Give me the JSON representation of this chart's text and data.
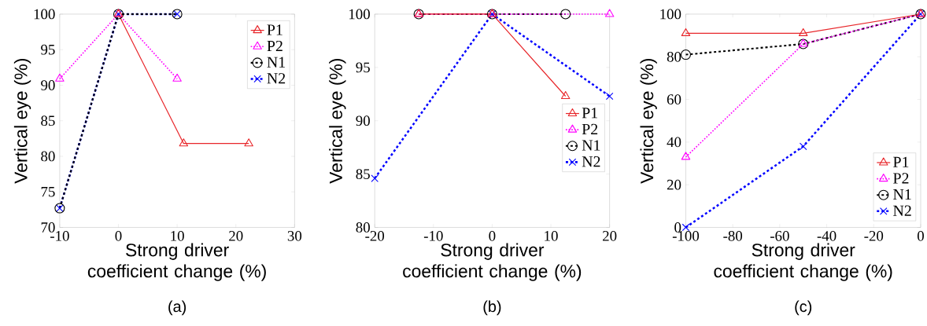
{
  "chart_data": [
    {
      "type": "line",
      "xlabel": "Strong driver coefficient change (%)",
      "ylabel": "Vertical eye (%)",
      "annotations": [
        "(a)"
      ],
      "xlim": [
        -10,
        30
      ],
      "ylim": [
        70,
        100
      ],
      "xticks": [
        -10,
        0,
        10,
        20,
        30
      ],
      "yticks": [
        70,
        75,
        80,
        85,
        90,
        95,
        100
      ],
      "legend": "top right",
      "series": [
        {
          "name": "P1",
          "color": "#e8262a",
          "marker": "triangle",
          "line_style": "solid",
          "x": [
            0,
            11.1,
            22.2
          ],
          "values": [
            100,
            81.8,
            81.8
          ]
        },
        {
          "name": "P2",
          "color": "#ff00ff",
          "marker": "triangle",
          "line_style": "dotted",
          "x": [
            -10,
            0,
            10
          ],
          "values": [
            90.9,
            100,
            90.9
          ]
        },
        {
          "name": "N1",
          "color": "#000000",
          "marker": "circle",
          "line_style": "dashed",
          "x": [
            -10,
            0,
            10
          ],
          "values": [
            72.7,
            100,
            100
          ]
        },
        {
          "name": "N2",
          "color": "#0000ff",
          "marker": "cross",
          "line_style": "dashed",
          "x": [
            -10,
            0,
            10
          ],
          "values": [
            72.7,
            100,
            100
          ]
        }
      ]
    },
    {
      "type": "line",
      "xlabel": "Strong driver coefficient change (%)",
      "ylabel": "Vertical eye (%)",
      "annotations": [
        "(b)"
      ],
      "xlim": [
        -20,
        20
      ],
      "ylim": [
        80,
        100
      ],
      "xticks": [
        -20,
        -10,
        0,
        10,
        20
      ],
      "yticks": [
        80,
        85,
        90,
        95,
        100
      ],
      "legend": "right",
      "series": [
        {
          "name": "P1",
          "color": "#e8262a",
          "marker": "triangle",
          "line_style": "solid",
          "x": [
            -12.5,
            0,
            12.5
          ],
          "values": [
            100,
            100,
            92.3
          ]
        },
        {
          "name": "P2",
          "color": "#ff00ff",
          "marker": "triangle",
          "line_style": "dotted",
          "x": [
            -12.5,
            0,
            20
          ],
          "values": [
            100,
            100,
            100
          ]
        },
        {
          "name": "N1",
          "color": "#000000",
          "marker": "circle",
          "line_style": "dashed",
          "x": [
            -12.5,
            0,
            12.5
          ],
          "values": [
            100,
            100,
            100
          ]
        },
        {
          "name": "N2",
          "color": "#0000ff",
          "marker": "cross",
          "line_style": "dashed",
          "x": [
            -20,
            0,
            20
          ],
          "values": [
            84.6,
            100,
            92.3
          ]
        }
      ]
    },
    {
      "type": "line",
      "xlabel": "Strong driver coefficient change (%)",
      "ylabel": "Vertical eye (%)",
      "annotations": [
        "(c)"
      ],
      "xlim": [
        -100,
        0
      ],
      "ylim": [
        0,
        100
      ],
      "xticks": [
        -100,
        -80,
        -60,
        -40,
        -20,
        0
      ],
      "yticks": [
        0,
        20,
        40,
        60,
        80,
        100
      ],
      "legend": "bottom right",
      "series": [
        {
          "name": "P1",
          "color": "#e8262a",
          "marker": "triangle",
          "line_style": "solid",
          "x": [
            -100,
            -50,
            0
          ],
          "values": [
            91,
            91,
            100
          ]
        },
        {
          "name": "P2",
          "color": "#ff00ff",
          "marker": "triangle",
          "line_style": "dotted",
          "x": [
            -100,
            -50,
            0
          ],
          "values": [
            33,
            86,
            100
          ]
        },
        {
          "name": "N1",
          "color": "#000000",
          "marker": "circle",
          "line_style": "dashed",
          "x": [
            -100,
            -50,
            0
          ],
          "values": [
            81,
            86,
            100
          ]
        },
        {
          "name": "N2",
          "color": "#0000ff",
          "marker": "cross",
          "line_style": "dashed",
          "x": [
            -100,
            -50,
            0
          ],
          "values": [
            0,
            38,
            100
          ]
        }
      ]
    }
  ]
}
